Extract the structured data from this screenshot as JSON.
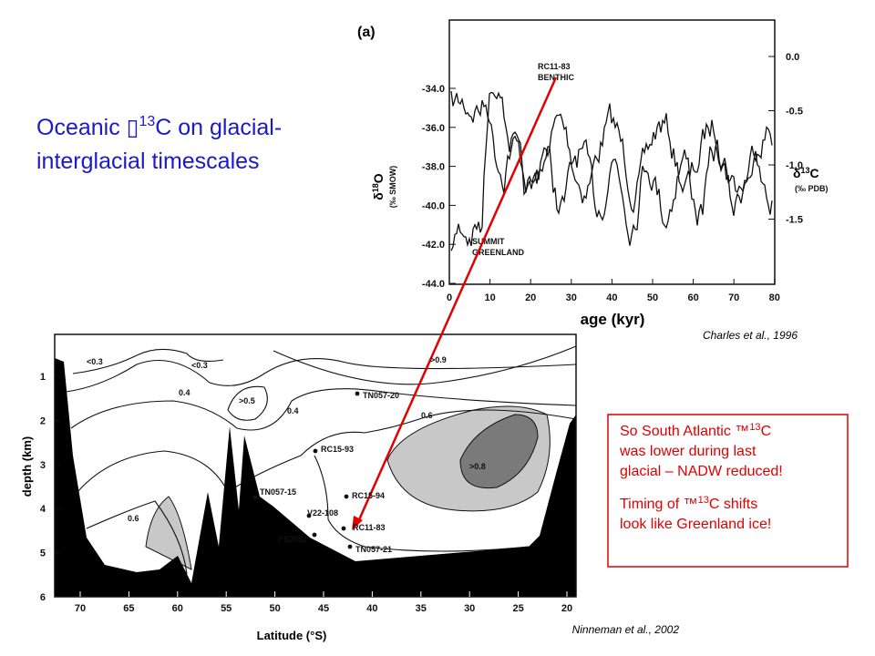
{
  "title": {
    "prefix": "Oceanic ",
    "glyph": "▯",
    "sup": "13",
    "rest": "C on glacial-",
    "line2": "interglacial timescales"
  },
  "figure_a": {
    "panel": "(a)",
    "x_label": "age (kyr)",
    "x_ticks": [
      "0",
      "10",
      "20",
      "30",
      "40",
      "50",
      "60",
      "70",
      "80"
    ],
    "left_ticks": [
      "-34.0",
      "-36.0",
      "-38.0",
      "-40.0",
      "-42.0",
      "-44.0"
    ],
    "right_ticks": [
      "0.0",
      "-0.5",
      "-1.0",
      "-1.5"
    ],
    "left_label": {
      "main": "δ",
      "sup": "18",
      "end": "O",
      "unit": "(‰ SMOW)"
    },
    "right_label": {
      "main": "δ",
      "sup": "13",
      "end": "C",
      "unit": "(‰ PDB)"
    },
    "annotations": [
      [
        "RC11-83",
        "BENTHIC"
      ],
      [
        "SUMMIT",
        "GREENLAND"
      ]
    ],
    "citation": "Charles et al., 1996"
  },
  "figure_b": {
    "y_label": "depth (km)",
    "y_ticks": [
      "1",
      "2",
      "3",
      "4",
      "5",
      "6"
    ],
    "x_label": "Latitude (°S)",
    "x_ticks": [
      "70",
      "65",
      "60",
      "55",
      "50",
      "45",
      "40",
      "35",
      "30",
      "25",
      "20"
    ],
    "contours": [
      "<0.3",
      "<0.3",
      "0.4",
      ">0.5",
      "0.4",
      ">0.9",
      "0.6",
      ">0.8",
      "0.6"
    ],
    "stations": [
      "TN057-20",
      "RC15-93",
      "TN057-15",
      "RC15-94",
      "V22-108",
      "RC11-83",
      "PS2082",
      "TN057-21"
    ],
    "citation": "Ninneman et al., 2002"
  },
  "note": {
    "lines": [
      {
        "a": "So South Atlantic ™",
        "sup": "13",
        "b": "C"
      },
      {
        "a": "was lower during last"
      },
      {
        "a": "glacial – NADW reduced!"
      },
      {
        "a": "Timing of ™",
        "sup": "13",
        "b": "C shifts"
      },
      {
        "a": "look like Greenland ice!"
      }
    ]
  }
}
